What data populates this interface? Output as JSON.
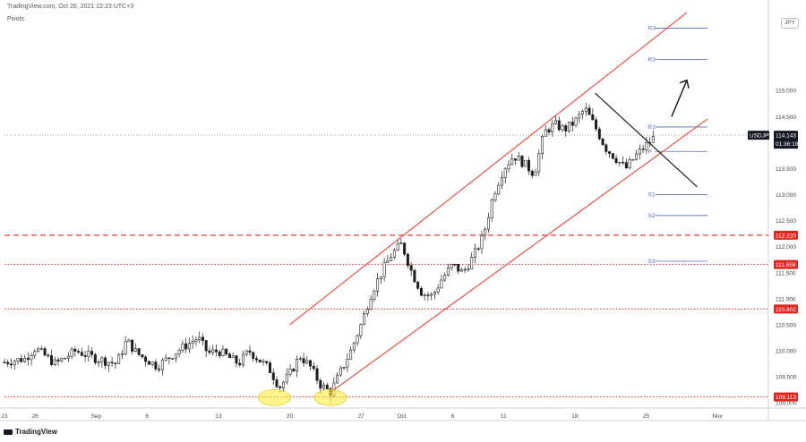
{
  "header": {
    "source": "TradingView.com, Oct 26, 2021 22:23 UTC+3",
    "indicator": "Pivots",
    "symbol_corner": "JPY"
  },
  "footer": {
    "brand": "TradingView"
  },
  "colors": {
    "channel": "#e8443a",
    "trendline": "#1f1f1f",
    "pivot": "#5b6bb5",
    "level": "#e0261f",
    "badge_red": "#e0261f",
    "candle": "#1f1f1f",
    "highlight": "#ffec3d"
  },
  "chart_data": {
    "type": "candlestick",
    "symbol": "USDJPY",
    "price_label": "114.143",
    "countdown": "01:36:19",
    "ylim": [
      108.9,
      116.5
    ],
    "yticks": [
      109.0,
      109.5,
      110.0,
      110.5,
      111.0,
      111.5,
      112.0,
      112.5,
      113.0,
      113.5,
      114.0,
      114.5,
      115.0
    ],
    "ytick_labels": [
      "109.000",
      "109.500",
      "110.000",
      "110.500",
      "111.000",
      "111.500",
      "112.000",
      "112.500",
      "113.000",
      "113.500",
      "114.000",
      "114.500",
      "115.000"
    ],
    "xticks": [
      {
        "label": "23",
        "day": 0
      },
      {
        "label": "26",
        "day": 3
      },
      {
        "label": "Sep",
        "day": 9
      },
      {
        "label": "6",
        "day": 14
      },
      {
        "label": "13",
        "day": 21
      },
      {
        "label": "20",
        "day": 28
      },
      {
        "label": "27",
        "day": 35
      },
      {
        "label": "Oct",
        "day": 39
      },
      {
        "label": "6",
        "day": 44
      },
      {
        "label": "11",
        "day": 49
      },
      {
        "label": "18",
        "day": 56
      },
      {
        "label": "25",
        "day": 63
      },
      {
        "label": "Nov",
        "day": 70
      }
    ],
    "xlim": [
      0,
      75
    ],
    "price_path": [
      [
        0,
        109.78
      ],
      [
        2,
        109.85
      ],
      [
        3,
        110.05
      ],
      [
        5,
        109.75
      ],
      [
        7,
        110.0
      ],
      [
        9,
        109.85
      ],
      [
        11,
        109.75
      ],
      [
        12,
        110.2
      ],
      [
        13,
        109.95
      ],
      [
        15,
        109.7
      ],
      [
        17,
        110.0
      ],
      [
        19,
        110.25
      ],
      [
        20,
        109.95
      ],
      [
        21,
        110.0
      ],
      [
        23,
        109.75
      ],
      [
        24,
        110.0
      ],
      [
        26,
        109.65
      ],
      [
        27,
        109.3
      ],
      [
        28,
        109.55
      ],
      [
        29,
        109.9
      ],
      [
        30,
        109.7
      ],
      [
        31,
        109.35
      ],
      [
        32,
        109.2
      ],
      [
        33,
        109.6
      ],
      [
        34,
        110.0
      ],
      [
        35,
        110.5
      ],
      [
        36,
        111.1
      ],
      [
        37,
        111.5
      ],
      [
        38,
        111.85
      ],
      [
        39,
        112.05
      ],
      [
        40,
        111.5
      ],
      [
        41,
        111.1
      ],
      [
        42,
        111.05
      ],
      [
        43,
        111.4
      ],
      [
        44,
        111.65
      ],
      [
        45,
        111.5
      ],
      [
        46,
        111.8
      ],
      [
        47,
        112.2
      ],
      [
        48,
        113.0
      ],
      [
        49,
        113.5
      ],
      [
        50,
        113.75
      ],
      [
        51,
        113.6
      ],
      [
        52,
        113.4
      ],
      [
        53,
        114.2
      ],
      [
        54,
        114.35
      ],
      [
        55,
        114.25
      ],
      [
        56,
        114.4
      ],
      [
        57,
        114.65
      ],
      [
        58,
        114.3
      ],
      [
        59,
        113.9
      ],
      [
        60,
        113.7
      ],
      [
        61,
        113.5
      ],
      [
        62,
        113.75
      ],
      [
        63,
        113.95
      ],
      [
        64,
        114.14
      ]
    ],
    "channel": {
      "upper": {
        "from": [
          28,
          110.5
        ],
        "to": [
          67,
          116.5
        ]
      },
      "lower": {
        "from": [
          32,
          109.2
        ],
        "to": [
          69,
          114.45
        ]
      }
    },
    "descending_trendline": {
      "from": [
        58,
        114.95
      ],
      "to": [
        68,
        113.15
      ]
    },
    "pivots": [
      {
        "label": "R3",
        "value": 116.2,
        "day_from": 63
      },
      {
        "label": "R2",
        "value": 115.6,
        "day_from": 63
      },
      {
        "label": "R1",
        "value": 114.3,
        "day_from": 63
      },
      {
        "label": "P",
        "value": 113.83,
        "day_from": 63
      },
      {
        "label": "S1",
        "value": 113.0,
        "day_from": 63
      },
      {
        "label": "S2",
        "value": 112.6,
        "day_from": 63
      },
      {
        "label": "S3",
        "value": 111.72,
        "day_from": 63
      }
    ],
    "levels": [
      {
        "value": 112.22,
        "label": "112.220",
        "style": "dashed"
      },
      {
        "value": 111.658,
        "label": "111.658",
        "style": "dotted"
      },
      {
        "value": 110.802,
        "label": "110.802",
        "style": "dotted"
      },
      {
        "value": 109.113,
        "label": "109.113",
        "style": "dotted"
      }
    ],
    "current_price": 114.143,
    "highlights": [
      {
        "day": 26.5,
        "price": 109.1
      },
      {
        "day": 32,
        "price": 109.1
      }
    ],
    "arrow": {
      "from": [
        65.5,
        114.5
      ],
      "to": [
        67,
        115.2
      ]
    }
  }
}
